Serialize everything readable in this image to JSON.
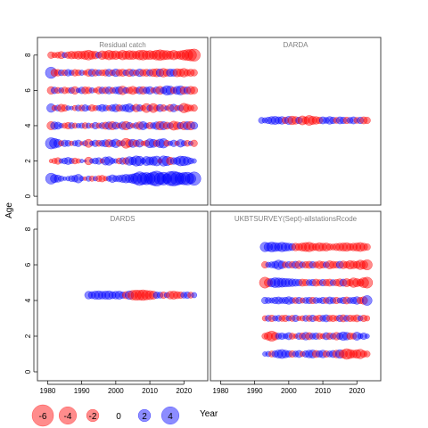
{
  "chart_data": {
    "type": "scatter",
    "subtype": "residual-bubble",
    "xlabel": "Year",
    "ylabel": "Age",
    "xlim": [
      1977,
      2027
    ],
    "ylim": [
      -0.5,
      9
    ],
    "x_ticks": [
      "1980",
      "1990",
      "2000",
      "2010",
      "2020"
    ],
    "y_ticks": [
      "0",
      "2",
      "4",
      "6",
      "8"
    ],
    "colors": {
      "positive": "#0000ff",
      "negative": "#ff0000",
      "frame": "#444444"
    },
    "legend": {
      "placement": "bottom",
      "items": [
        {
          "label": "-6",
          "value": -6
        },
        {
          "label": "-4",
          "value": -4
        },
        {
          "label": "-2",
          "value": -2
        },
        {
          "label": "0",
          "value": 0
        },
        {
          "label": "2",
          "value": 2
        },
        {
          "label": "4",
          "value": 4
        }
      ]
    },
    "panels": [
      {
        "name": "Residual catch",
        "series": [
          {
            "age": 1,
            "years": [
              1981,
              2023
            ],
            "residuals": [
              1.6,
              0.9,
              0.7,
              0.4,
              0.2,
              0.3,
              0.5,
              0.6,
              1.0,
              0.3,
              -0.2,
              0.4,
              -0.4,
              0.3,
              -0.5,
              -0.6,
              -0.3,
              0.4,
              0.8,
              0.5,
              0.6,
              0.8,
              1.0,
              0.9,
              1.2,
              1.6,
              2.5,
              1.8,
              2.0,
              1.6,
              2.4,
              3.0,
              1.8,
              2.2,
              1.3,
              2.6,
              2.9,
              2.3,
              1.7,
              2.0,
              2.2,
              1.4,
              2.4
            ]
          },
          {
            "age": 2,
            "years": [
              1981,
              2023
            ],
            "residuals": [
              -0.2,
              -0.4,
              -0.6,
              0.3,
              0.5,
              0.7,
              0.4,
              -0.5,
              -0.3,
              0.2,
              0.1,
              -0.8,
              0.3,
              0.5,
              0.6,
              -0.3,
              0.9,
              1.0,
              0.4,
              0.3,
              -0.5,
              0.6,
              -0.6,
              1.0,
              0.8,
              1.4,
              1.2,
              0.4,
              1.1,
              0.9,
              1.0,
              1.3,
              -0.3,
              1.4,
              1.2,
              -0.8,
              0.6,
              0.7,
              1.3,
              1.2,
              0.9,
              0.5,
              0.3
            ]
          },
          {
            "age": 3,
            "years": [
              1981,
              2023
            ],
            "residuals": [
              1.7,
              1.3,
              0.9,
              -0.4,
              0.6,
              0.5,
              -0.3,
              0.4,
              0.6,
              -0.2,
              0.4,
              -0.9,
              0.3,
              0.6,
              -0.5,
              0.5,
              0.7,
              -0.8,
              0.6,
              1.0,
              -0.5,
              0.4,
              -1.3,
              -0.8,
              0.9,
              -0.6,
              0.8,
              -0.3,
              -0.5,
              1.1,
              0.9,
              -0.6,
              1.0,
              1.2,
              -0.5,
              0.3,
              0.6,
              -0.3,
              0.8,
              0.4,
              -0.5,
              0.3,
              -0.6
            ]
          },
          {
            "age": 4,
            "years": [
              1981,
              2023
            ],
            "residuals": [
              -0.9,
              0.8,
              0.7,
              0.3,
              -0.4,
              -0.6,
              0.5,
              -0.4,
              0.3,
              0.4,
              -0.5,
              0.4,
              -0.3,
              0.6,
              -0.4,
              0.5,
              -0.7,
              0.8,
              -0.9,
              0.7,
              -0.4,
              0.8,
              -1.0,
              0.6,
              -0.3,
              0.5,
              -0.8,
              0.9,
              0.4,
              -0.6,
              0.5,
              0.8,
              -1.0,
              0.9,
              -0.7,
              0.5,
              -1.1,
              -0.8,
              0.6,
              -0.9,
              0.9,
              -1.0,
              0.7
            ]
          },
          {
            "age": 5,
            "years": [
              1981,
              2023
            ],
            "residuals": [
              1.0,
              -0.4,
              0.5,
              -0.8,
              -0.6,
              0.3,
              0.2,
              -0.4,
              0.5,
              -0.5,
              0.6,
              0.3,
              -0.6,
              -0.4,
              0.4,
              0.7,
              0.5,
              -0.4,
              0.6,
              0.8,
              -0.6,
              0.5,
              0.7,
              1.0,
              0.4,
              -0.8,
              0.6,
              -0.4,
              -1.1,
              0.5,
              -1.1,
              -0.5,
              0.7,
              -0.6,
              0.3,
              -0.7,
              0.8,
              -0.4,
              0.5,
              -1.2,
              -0.8,
              -0.5,
              -0.6
            ]
          },
          {
            "age": 6,
            "years": [
              1981,
              2023
            ],
            "residuals": [
              -0.8,
              0.6,
              -0.5,
              0.4,
              -0.6,
              -0.4,
              0.5,
              -0.8,
              0.3,
              0.6,
              -0.7,
              -0.6,
              0.4,
              -0.3,
              -0.7,
              0.6,
              -0.6,
              0.7,
              -0.5,
              0.6,
              0.8,
              -1.0,
              0.5,
              -0.6,
              -0.9,
              -0.5,
              0.7,
              -0.8,
              0.6,
              0.8,
              -0.4,
              0.7,
              -0.9,
              0.6,
              1.2,
              1.0,
              -0.6,
              0.9,
              1.1,
              -0.8,
              0.7,
              -0.9,
              -0.7
            ]
          },
          {
            "age": 7,
            "years": [
              1981,
              2023
            ],
            "residuals": [
              1.7,
              -0.7,
              -0.6,
              0.5,
              -0.5,
              0.6,
              0.4,
              -0.6,
              -0.5,
              0.4,
              -0.3,
              -0.7,
              0.7,
              -0.6,
              0.5,
              -0.5,
              -0.6,
              0.7,
              -0.5,
              0.8,
              -0.6,
              -0.7,
              0.5,
              -0.8,
              0.6,
              -0.5,
              0.8,
              -0.6,
              -0.7,
              0.6,
              -0.8,
              -0.9,
              0.8,
              -1.0,
              -0.7,
              0.8,
              0.7,
              -0.9,
              -0.8,
              -1.0,
              -0.6,
              -0.7,
              -0.6
            ]
          },
          {
            "age": 8,
            "years": [
              1981,
              2023
            ],
            "residuals": [
              -0.6,
              -0.4,
              -0.5,
              -0.7,
              0.4,
              -0.6,
              -0.8,
              -0.7,
              -0.9,
              -0.8,
              -1.0,
              -1.3,
              -0.9,
              -0.8,
              0.5,
              -1.0,
              -0.8,
              -1.2,
              -0.9,
              -1.0,
              -0.7,
              -1.2,
              -0.9,
              -1.1,
              -1.0,
              -0.8,
              -1.2,
              -1.3,
              -1.0,
              -1.1,
              -0.9,
              -1.3,
              -1.5,
              -1.2,
              -1.1,
              -0.9,
              -1.2,
              -0.8,
              -1.0,
              -1.3,
              -1.6,
              -1.8,
              -2.0
            ]
          }
        ]
      },
      {
        "name": "DARDA",
        "series": [
          {
            "age": 4.3,
            "years": [
              1992,
              2023
            ],
            "residuals": [
              0.5,
              0.4,
              0.6,
              0.8,
              0.9,
              0.7,
              0.8,
              -0.6,
              0.9,
              -1.0,
              -0.8,
              0.6,
              -1.1,
              -0.7,
              -1.3,
              -0.9,
              -0.8,
              -0.6,
              0.7,
              0.5,
              0.8,
              0.6,
              -0.5,
              0.7,
              0.6,
              -0.6,
              0.5,
              0.7,
              -0.5,
              0.6,
              -0.7,
              -0.6
            ]
          }
        ]
      },
      {
        "name": "DARDS",
        "series": [
          {
            "age": 4.3,
            "years": [
              1992,
              2023
            ],
            "residuals": [
              0.8,
              0.7,
              0.9,
              1.0,
              0.8,
              0.9,
              1.0,
              0.7,
              0.8,
              0.9,
              0.6,
              -0.7,
              1.0,
              -1.2,
              -1.4,
              -1.3,
              -1.5,
              -1.2,
              -1.1,
              -0.9,
              0.6,
              0.5,
              -0.6,
              0.4,
              -0.8,
              -0.9,
              -0.7,
              -0.6,
              0.5,
              0.6,
              -0.5,
              0.4
            ]
          }
        ]
      },
      {
        "name": "UKBTSURVEY(Sept)-allstationsRcode",
        "series": [
          {
            "age": 1,
            "years": [
              1993,
              2023
            ],
            "residuals": [
              0.3,
              0.4,
              -0.5,
              0.6,
              0.9,
              1.1,
              0.8,
              0.6,
              -0.6,
              0.5,
              0.7,
              -0.4,
              0.6,
              0.8,
              0.9,
              -0.7,
              0.6,
              0.8,
              -0.6,
              0.5,
              0.7,
              -0.8,
              1.0,
              -0.9,
              -1.5,
              -1.1,
              -0.8,
              -1.0,
              -1.2,
              -0.6,
              -0.5
            ]
          },
          {
            "age": 2,
            "years": [
              1993,
              2023
            ],
            "residuals": [
              -0.5,
              -0.9,
              -1.4,
              -0.8,
              0.5,
              0.6,
              0.4,
              0.7,
              -0.5,
              -0.3,
              0.6,
              -0.6,
              0.8,
              -0.7,
              0.5,
              0.6,
              -0.5,
              -0.4,
              0.7,
              -0.6,
              0.5,
              -0.8,
              0.6,
              1.0,
              0.8,
              -0.6,
              -0.5,
              0.9,
              0.4,
              0.6,
              0.3
            ]
          },
          {
            "age": 3,
            "years": [
              1993,
              2023
            ],
            "residuals": [
              -0.4,
              0.5,
              -0.6,
              0.4,
              0.5,
              -0.5,
              -0.6,
              0.4,
              -0.5,
              0.6,
              -0.3,
              -0.4,
              0.5,
              -0.5,
              0.6,
              -0.4,
              -0.6,
              0.5,
              0.7,
              -0.5,
              -0.6,
              -0.4,
              0.6,
              -0.7,
              0.5,
              -0.6,
              -0.5,
              -0.7,
              0.4,
              -0.6,
              -0.4
            ]
          },
          {
            "age": 4,
            "years": [
              1993,
              2023
            ],
            "residuals": [
              0.6,
              0.5,
              0.4,
              0.6,
              0.7,
              0.5,
              0.6,
              0.8,
              0.5,
              -0.5,
              0.6,
              -0.4,
              0.5,
              0.6,
              -0.6,
              0.5,
              0.4,
              0.6,
              -0.5,
              0.7,
              0.5,
              -0.6,
              0.4,
              0.6,
              -0.7,
              0.5,
              0.6,
              0.8,
              -0.6,
              -0.8,
              1.3
            ]
          },
          {
            "age": 5,
            "years": [
              1993,
              2023
            ],
            "residuals": [
              -1.6,
              -0.9,
              1.0,
              1.3,
              1.2,
              1.1,
              1.0,
              0.9,
              0.8,
              0.7,
              0.6,
              -0.7,
              -0.6,
              0.5,
              0.6,
              -0.7,
              -0.5,
              0.6,
              -0.6,
              -0.7,
              0.5,
              -0.6,
              -0.8,
              0.7,
              -0.9,
              -0.6,
              -1.2,
              -0.9,
              -0.7,
              -1.3,
              -1.6
            ]
          },
          {
            "age": 6,
            "years": [
              1993,
              2023
            ],
            "residuals": [
              -0.6,
              0.4,
              0.5,
              0.7,
              1.2,
              0.8,
              -0.5,
              0.6,
              -0.6,
              0.7,
              -0.8,
              0.5,
              -0.6,
              -0.7,
              0.6,
              -0.5,
              -0.8,
              -0.6,
              0.5,
              -0.9,
              -0.7,
              -0.6,
              0.7,
              -0.8,
              -0.6,
              -1.0,
              -0.8,
              -0.7,
              -1.2,
              -0.9,
              -1.4
            ]
          },
          {
            "age": 7,
            "years": [
              1993,
              2023
            ],
            "residuals": [
              1.2,
              1.0,
              1.3,
              1.1,
              0.9,
              1.2,
              1.0,
              0.8,
              0.7,
              -0.8,
              -0.7,
              -0.9,
              -1.1,
              -1.2,
              -0.8,
              -0.7,
              -1.0,
              -0.8,
              -0.9,
              -0.6,
              -0.5,
              -0.7,
              -0.8,
              -0.9,
              -1.0,
              -0.7,
              -0.8,
              -0.9,
              -1.1,
              -0.8,
              -0.6
            ]
          }
        ]
      }
    ]
  }
}
